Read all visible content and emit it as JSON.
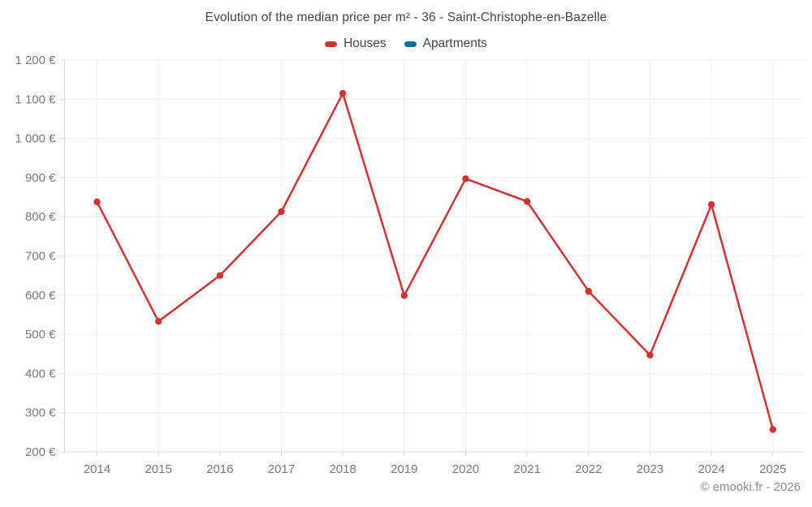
{
  "title": "Evolution of the median price per m² - 36 - Saint-Christophe-en-Bazelle",
  "footer": {
    "text": "© emooki.fr - 2026"
  },
  "colors": {
    "houses": "#d7312f",
    "apartments": "#10709f",
    "title_text": "#404549",
    "tick_text": "#7a7a7a",
    "grid": "#ededed",
    "axis": "#d9d9d9",
    "footer_text": "#8c8c8c",
    "background": "#ffffff"
  },
  "chart_data": {
    "type": "line",
    "title": "Evolution of the median price per m² - 36 - Saint-Christophe-en-Bazelle",
    "x": [
      2014,
      2015,
      2016,
      2017,
      2018,
      2019,
      2020,
      2021,
      2022,
      2023,
      2024,
      2025
    ],
    "series": [
      {
        "name": "Houses",
        "color": "#d7312f",
        "values": [
          838,
          533,
          650,
          813,
          1115,
          599,
          897,
          839,
          610,
          447,
          831,
          257
        ]
      },
      {
        "name": "Apartments",
        "color": "#10709f",
        "values": []
      }
    ],
    "xlabel": "",
    "ylabel": "",
    "ylim": [
      200,
      1200
    ],
    "ytick_step": 100,
    "ytick_format": "{value} €",
    "grid": true,
    "legend_position": "top"
  }
}
